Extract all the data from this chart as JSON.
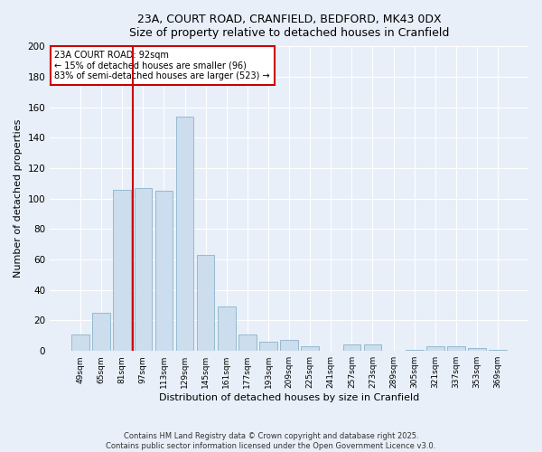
{
  "title_line1": "23A, COURT ROAD, CRANFIELD, BEDFORD, MK43 0DX",
  "title_line2": "Size of property relative to detached houses in Cranfield",
  "xlabel": "Distribution of detached houses by size in Cranfield",
  "ylabel": "Number of detached properties",
  "categories": [
    "49sqm",
    "65sqm",
    "81sqm",
    "97sqm",
    "113sqm",
    "129sqm",
    "145sqm",
    "161sqm",
    "177sqm",
    "193sqm",
    "209sqm",
    "225sqm",
    "241sqm",
    "257sqm",
    "273sqm",
    "289sqm",
    "305sqm",
    "321sqm",
    "337sqm",
    "353sqm",
    "369sqm"
  ],
  "values": [
    11,
    25,
    106,
    107,
    105,
    154,
    63,
    29,
    11,
    6,
    7,
    3,
    0,
    4,
    4,
    0,
    1,
    3,
    3,
    2,
    1
  ],
  "bar_color": "#ccdded",
  "bar_edge_color": "#7aaac0",
  "vline_color": "#cc0000",
  "vline_pos": 2.5,
  "annotation_text": "23A COURT ROAD: 92sqm\n← 15% of detached houses are smaller (96)\n83% of semi-detached houses are larger (523) →",
  "annotation_box_color": "#ffffff",
  "annotation_box_edge": "#cc0000",
  "ylim": [
    0,
    200
  ],
  "yticks": [
    0,
    20,
    40,
    60,
    80,
    100,
    120,
    140,
    160,
    180,
    200
  ],
  "background_color": "#e8eff8",
  "grid_color": "#ffffff",
  "footer_line1": "Contains HM Land Registry data © Crown copyright and database right 2025.",
  "footer_line2": "Contains public sector information licensed under the Open Government Licence v3.0."
}
